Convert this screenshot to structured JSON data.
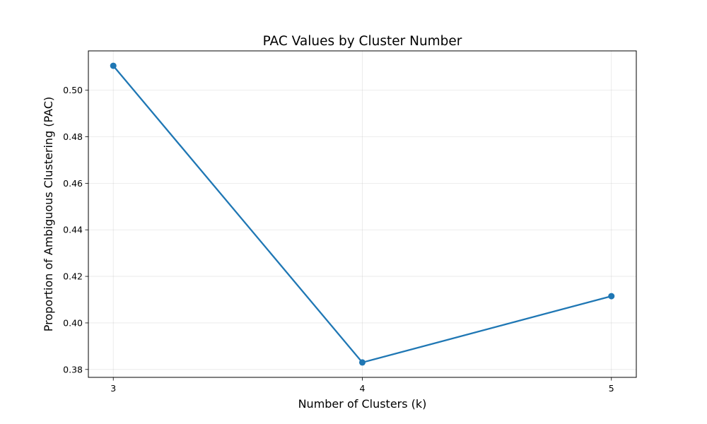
{
  "chart_data": {
    "type": "line",
    "title": "PAC Values by Cluster Number",
    "xlabel": "Number of Clusters (k)",
    "ylabel": "Proportion of Ambiguous Clustering (PAC)",
    "x": [
      3,
      4,
      5
    ],
    "x_ticks": [
      "3",
      "4",
      "5"
    ],
    "xlim": [
      2.9,
      5.1
    ],
    "series": [
      {
        "values": [
          0.5105,
          0.383,
          0.4115
        ]
      }
    ],
    "y_ticks": [
      0.38,
      0.4,
      0.42,
      0.44,
      0.46,
      0.48,
      0.5
    ],
    "y_tick_labels": [
      "0.38",
      "0.40",
      "0.42",
      "0.44",
      "0.46",
      "0.48",
      "0.50"
    ],
    "ylim": [
      0.3766,
      0.5169
    ],
    "grid": true,
    "line_color": "#1f77b4"
  }
}
